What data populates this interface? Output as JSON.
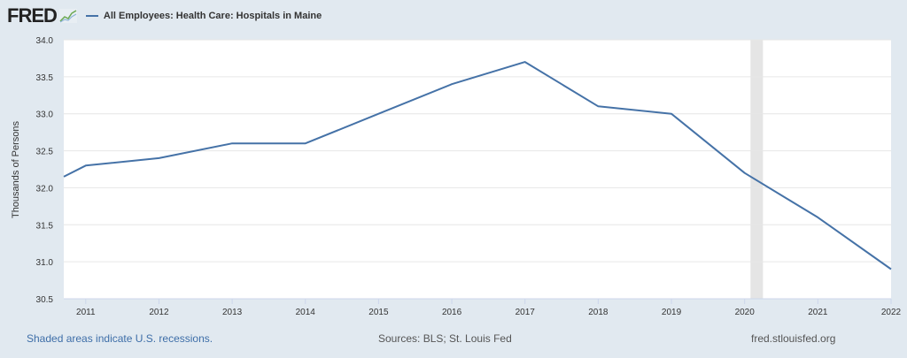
{
  "header": {
    "logo": "FRED",
    "series_title": "All Employees: Health Care: Hospitals in Maine"
  },
  "footer": {
    "recession_note": "Shaded areas indicate U.S. recessions.",
    "sources": "Sources: BLS; St. Louis Fed",
    "site": "fred.stlouisfed.org"
  },
  "colors": {
    "series": "#4572a7",
    "background": "#e1e9f0",
    "recession": "#e5e5e5"
  },
  "chart_data": {
    "type": "line",
    "title": "All Employees: Health Care: Hospitals in Maine",
    "xlabel": "",
    "ylabel": "Thousands of Persons",
    "ylim": [
      30.5,
      34.0
    ],
    "xlim": [
      2010.7,
      2022.0
    ],
    "yticks": [
      "30.5",
      "31.0",
      "31.5",
      "32.0",
      "32.5",
      "33.0",
      "33.5",
      "34.0"
    ],
    "xticks": [
      "2011",
      "2012",
      "2013",
      "2014",
      "2015",
      "2016",
      "2017",
      "2018",
      "2019",
      "2020",
      "2021",
      "2022"
    ],
    "grid": true,
    "legend": "top-left",
    "recessions": [
      [
        2020.08,
        2020.25
      ]
    ],
    "series": [
      {
        "name": "All Employees: Health Care: Hospitals in Maine",
        "x": [
          2010.7,
          2011,
          2012,
          2013,
          2014,
          2015,
          2016,
          2017,
          2018,
          2019,
          2020,
          2021,
          2022
        ],
        "values": [
          32.15,
          32.3,
          32.4,
          32.6,
          32.6,
          33.0,
          33.4,
          33.7,
          33.1,
          33.0,
          32.2,
          31.6,
          30.9
        ]
      }
    ]
  }
}
